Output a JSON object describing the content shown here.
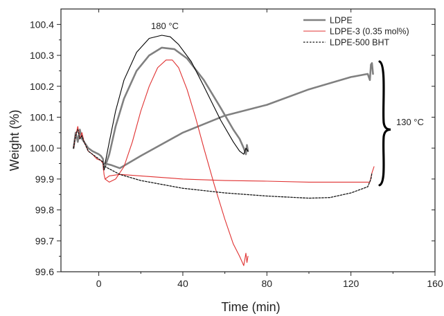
{
  "chart_data": {
    "type": "line",
    "title": "",
    "xlabel": "Time (min)",
    "ylabel": "Weight (%)",
    "xlim": [
      -18,
      160
    ],
    "ylim": [
      99.6,
      100.45
    ],
    "xticks": [
      0,
      40,
      80,
      120,
      160
    ],
    "yticks": [
      99.6,
      99.7,
      99.8,
      99.9,
      100.0,
      100.1,
      100.2,
      100.3,
      100.4
    ],
    "xtick_labels": [
      "0",
      "40",
      "80",
      "120",
      "160"
    ],
    "ytick_labels": [
      "99.6",
      "99.7",
      "99.8",
      "99.9",
      "100.0",
      "100.1",
      "100.2",
      "100.3",
      "100.4"
    ],
    "grid": false,
    "legend_position": "top-right",
    "annotations": {
      "temp_180": "180 °C",
      "temp_130": "130 °C"
    },
    "series": [
      {
        "name": "LDPE",
        "color": "#808080",
        "style": "solid-thick",
        "segments": [
          {
            "x": [
              -12,
              -11,
              -10,
              -9,
              -8,
              -7,
              -5,
              -3,
              0,
              1,
              2,
              2.4,
              3,
              6,
              10,
              20,
              40,
              60,
              80,
              100,
              120,
              128,
              129,
              129.5,
              130,
              130.5
            ],
            "y": [
              100.0,
              100.05,
              100.02,
              100.06,
              100.03,
              100.02,
              100.0,
              99.99,
              99.98,
              99.975,
              99.965,
              99.93,
              99.95,
              99.945,
              99.935,
              99.975,
              100.05,
              100.105,
              100.14,
              100.19,
              100.23,
              100.24,
              100.22,
              100.27,
              100.275,
              100.24
            ]
          },
          {
            "x": [
              3,
              5,
              8,
              12,
              18,
              24,
              30,
              36,
              42,
              50,
              58,
              64,
              67,
              69,
              70,
              70.5,
              71
            ],
            "y": [
              99.94,
              99.98,
              100.07,
              100.16,
              100.25,
              100.3,
              100.325,
              100.32,
              100.29,
              100.22,
              100.13,
              100.06,
              100.03,
              100.0,
              99.98,
              100.01,
              99.99
            ]
          }
        ]
      },
      {
        "name": "LDPE-3 (0.35 mol%)",
        "color": "#e03030",
        "style": "solid-thin",
        "segments": [
          {
            "x": [
              -12,
              -11,
              -10,
              -9,
              -8,
              -7,
              -5,
              -3,
              -1,
              1,
              2,
              2.5,
              3,
              5,
              10,
              20,
              40,
              60,
              80,
              100,
              120,
              129,
              130,
              131
            ],
            "y": [
              100.0,
              100.04,
              100.07,
              100.03,
              100.05,
              100.02,
              99.99,
              99.98,
              99.965,
              99.96,
              99.95,
              99.915,
              99.9,
              99.91,
              99.915,
              99.91,
              99.9,
              99.895,
              99.893,
              99.89,
              99.89,
              99.89,
              99.92,
              99.94
            ]
          },
          {
            "x": [
              3,
              5,
              8,
              12,
              16,
              20,
              24,
              28,
              32,
              35,
              38,
              42,
              46,
              50,
              55,
              60,
              64,
              67,
              69,
              70,
              70.5,
              71
            ],
            "y": [
              99.9,
              99.89,
              99.9,
              99.94,
              100.02,
              100.12,
              100.2,
              100.26,
              100.285,
              100.285,
              100.26,
              100.19,
              100.1,
              100.0,
              99.88,
              99.77,
              99.69,
              99.65,
              99.62,
              99.66,
              99.63,
              99.65
            ]
          }
        ]
      },
      {
        "name": "LDPE-500 BHT",
        "color": "#111111",
        "style": "dotted",
        "segments": [
          {
            "x": [
              -12,
              -11,
              -10,
              -9,
              -8,
              -7,
              -5,
              -3,
              0,
              1,
              2,
              2.5,
              3,
              10,
              20,
              40,
              60,
              80,
              100,
              110,
              120,
              128,
              129.5,
              130
            ],
            "y": [
              100.0,
              100.04,
              100.06,
              100.03,
              100.04,
              100.02,
              99.99,
              99.98,
              99.965,
              99.96,
              99.955,
              99.93,
              99.94,
              99.915,
              99.895,
              99.87,
              99.855,
              99.845,
              99.838,
              99.84,
              99.855,
              99.875,
              99.9,
              99.92
            ]
          }
        ]
      },
      {
        "name": "",
        "color": "#000000",
        "style": "solid-thin",
        "legend": false,
        "segments": [
          {
            "x": [
              3,
              5,
              8,
              12,
              18,
              24,
              30,
              34,
              38,
              44,
              50,
              58,
              64,
              67,
              69,
              70,
              71
            ],
            "y": [
              99.95,
              100.02,
              100.12,
              100.22,
              100.31,
              100.355,
              100.365,
              100.36,
              100.335,
              100.28,
              100.2,
              100.09,
              100.02,
              99.99,
              99.98,
              100.0,
              99.99
            ]
          }
        ]
      }
    ]
  }
}
